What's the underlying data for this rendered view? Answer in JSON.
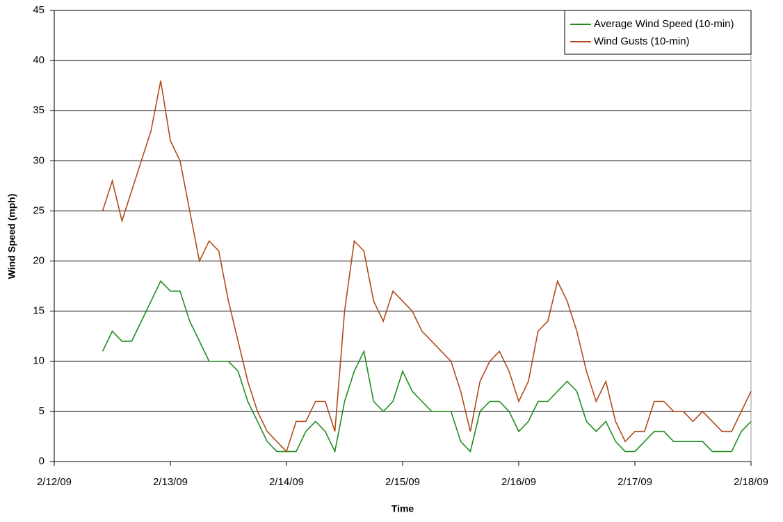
{
  "chart_data": {
    "type": "line",
    "x_label": "Time",
    "y_label": "Wind Speed (mph)",
    "x": [
      "2009-02-12T10:00",
      "2009-02-12T12:00",
      "2009-02-12T14:00",
      "2009-02-12T16:00",
      "2009-02-12T18:00",
      "2009-02-12T20:00",
      "2009-02-12T22:00",
      "2009-02-13T00:00",
      "2009-02-13T02:00",
      "2009-02-13T04:00",
      "2009-02-13T06:00",
      "2009-02-13T08:00",
      "2009-02-13T10:00",
      "2009-02-13T12:00",
      "2009-02-13T14:00",
      "2009-02-13T16:00",
      "2009-02-13T18:00",
      "2009-02-13T20:00",
      "2009-02-13T22:00",
      "2009-02-14T00:00",
      "2009-02-14T02:00",
      "2009-02-14T04:00",
      "2009-02-14T06:00",
      "2009-02-14T08:00",
      "2009-02-14T10:00",
      "2009-02-14T12:00",
      "2009-02-14T14:00",
      "2009-02-14T16:00",
      "2009-02-14T18:00",
      "2009-02-14T20:00",
      "2009-02-14T22:00",
      "2009-02-15T00:00",
      "2009-02-15T02:00",
      "2009-02-15T04:00",
      "2009-02-15T06:00",
      "2009-02-15T08:00",
      "2009-02-15T10:00",
      "2009-02-15T12:00",
      "2009-02-15T14:00",
      "2009-02-15T16:00",
      "2009-02-15T18:00",
      "2009-02-15T20:00",
      "2009-02-15T22:00",
      "2009-02-16T00:00",
      "2009-02-16T02:00",
      "2009-02-16T04:00",
      "2009-02-16T06:00",
      "2009-02-16T08:00",
      "2009-02-16T10:00",
      "2009-02-16T12:00",
      "2009-02-16T14:00",
      "2009-02-16T16:00",
      "2009-02-16T18:00",
      "2009-02-16T20:00",
      "2009-02-16T22:00",
      "2009-02-17T00:00",
      "2009-02-17T02:00",
      "2009-02-17T04:00",
      "2009-02-17T06:00",
      "2009-02-17T08:00",
      "2009-02-17T10:00",
      "2009-02-17T12:00",
      "2009-02-17T14:00",
      "2009-02-17T16:00",
      "2009-02-17T18:00",
      "2009-02-17T20:00",
      "2009-02-17T22:00",
      "2009-02-18T00:00"
    ],
    "series": [
      {
        "name": "Average Wind Speed (10-min)",
        "color": "#1e8c1e",
        "values": [
          11,
          13,
          12,
          12,
          14,
          16,
          18,
          17,
          17,
          14,
          12,
          10,
          10,
          10,
          9,
          6,
          4,
          2,
          1,
          1,
          1,
          3,
          4,
          3,
          1,
          6,
          9,
          11,
          6,
          5,
          6,
          9,
          7,
          6,
          5,
          5,
          5,
          2,
          1,
          5,
          6,
          6,
          5,
          3,
          4,
          6,
          6,
          7,
          8,
          7,
          4,
          3,
          4,
          2,
          1,
          1,
          2,
          3,
          3,
          2,
          2,
          2,
          2,
          1,
          1,
          1,
          3,
          4
        ]
      },
      {
        "name": "Wind Gusts (10-min)",
        "color": "#b04a18",
        "values": [
          25,
          28,
          24,
          27,
          30,
          33,
          38,
          32,
          30,
          25,
          20,
          22,
          21,
          16,
          12,
          8,
          5,
          3,
          2,
          1,
          4,
          4,
          6,
          6,
          3,
          15,
          22,
          21,
          16,
          14,
          17,
          16,
          15,
          13,
          12,
          11,
          10,
          7,
          3,
          8,
          10,
          11,
          9,
          6,
          8,
          13,
          14,
          18,
          16,
          13,
          9,
          6,
          8,
          4,
          2,
          3,
          3,
          6,
          6,
          5,
          5,
          4,
          5,
          4,
          3,
          3,
          5,
          7
        ]
      }
    ],
    "xlim": [
      "2009-02-12T00:00",
      "2009-02-18T00:00"
    ],
    "xticks": [
      {
        "value": "2009-02-12T00:00",
        "label": "2/12/09"
      },
      {
        "value": "2009-02-13T00:00",
        "label": "2/13/09"
      },
      {
        "value": "2009-02-14T00:00",
        "label": "2/14/09"
      },
      {
        "value": "2009-02-15T00:00",
        "label": "2/15/09"
      },
      {
        "value": "2009-02-16T00:00",
        "label": "2/16/09"
      },
      {
        "value": "2009-02-17T00:00",
        "label": "2/17/09"
      },
      {
        "value": "2009-02-18T00:00",
        "label": "2/18/09"
      }
    ],
    "ylim": [
      0,
      45
    ],
    "yticks": [
      0,
      5,
      10,
      15,
      20,
      25,
      30,
      35,
      40,
      45
    ],
    "grid": true,
    "legend": "top-right"
  }
}
